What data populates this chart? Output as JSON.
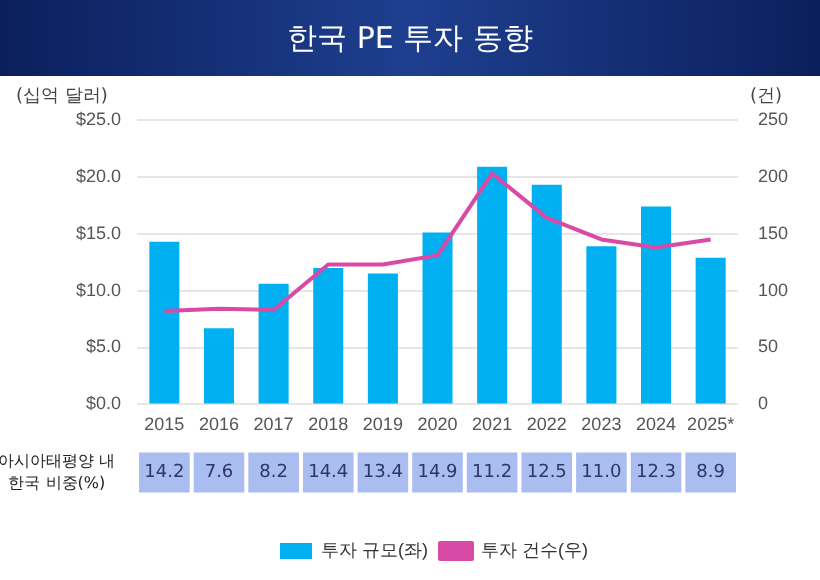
{
  "chart_data": {
    "type": "bar",
    "title": "한국 PE 투자 동향",
    "ylabel": "(십억 달러)",
    "y2label": "(건)",
    "categories": [
      "2015",
      "2016",
      "2017",
      "2018",
      "2019",
      "2020",
      "2021",
      "2022",
      "2023",
      "2024",
      "2025*"
    ],
    "series": [
      {
        "name": "투자 규모(좌)",
        "color": "#00b0f0",
        "values": [
          14.3,
          6.7,
          10.6,
          12.0,
          11.5,
          15.1,
          20.9,
          19.3,
          13.9,
          17.4,
          12.9
        ]
      },
      {
        "name": "투자 건수(우)",
        "type": "line",
        "axis": "y2",
        "color": "#d94aa6",
        "values": [
          82,
          84,
          83,
          123,
          123,
          131,
          203,
          164,
          145,
          138,
          145
        ]
      }
    ],
    "ylim": [
      0,
      25
    ],
    "yticks": [
      {
        "value": 0,
        "label": "$0.0"
      },
      {
        "value": 5,
        "label": "$5.0"
      },
      {
        "value": 10,
        "label": "$10.0"
      },
      {
        "value": 15,
        "label": "$15.0"
      },
      {
        "value": 20,
        "label": "$20.0"
      },
      {
        "value": 25,
        "label": "$25.0"
      }
    ],
    "y2lim": [
      0,
      250
    ],
    "y2ticks": [
      0,
      50,
      100,
      150,
      200,
      250
    ],
    "grid": "y",
    "legend": "bottom",
    "marker": "none",
    "line_style": "solid",
    "annotations": [
      "아시아태평양 내\n한국 비중(%)",
      "14.2",
      "7.6",
      "8.2",
      "14.4",
      "13.4",
      "14.9",
      "11.2",
      "12.5",
      "11.0",
      "12.3",
      "8.9"
    ]
  }
}
